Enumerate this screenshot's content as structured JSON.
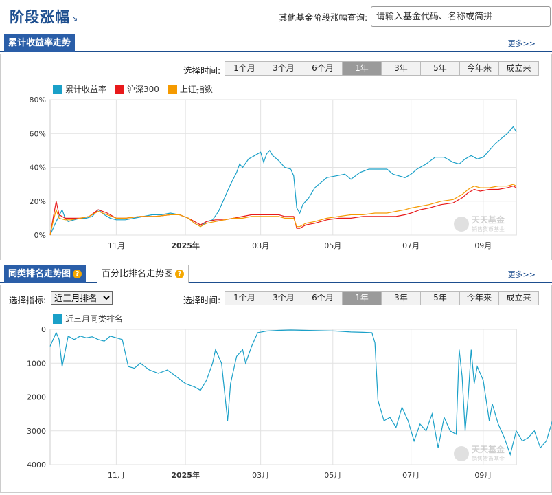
{
  "header": {
    "title": "阶段涨幅",
    "query_label": "其他基金阶段涨幅查询:",
    "search_placeholder": "请输入基金代码、名称或简拼"
  },
  "section1": {
    "tab": "累计收益率走势",
    "more": "更多>>",
    "time_label": "选择时间:",
    "time_buttons": [
      "1个月",
      "3个月",
      "6个月",
      "1年",
      "3年",
      "5年",
      "今年来",
      "成立来"
    ],
    "active_time": "1年"
  },
  "section2": {
    "tab": "同类排名走势图",
    "tab2": "百分比排名走势图",
    "more": "更多>>",
    "indicator_label": "选择指标:",
    "indicator_value": "近三月排名",
    "time_label": "选择时间:",
    "time_buttons": [
      "1个月",
      "3个月",
      "6个月",
      "1年",
      "3年",
      "5年",
      "今年来",
      "成立来"
    ],
    "active_time": "1年"
  },
  "watermark": {
    "brand": "天天基金",
    "slogan": "销售货币基金"
  },
  "colors": {
    "fund": "#1aa0c8",
    "hs300": "#e8191b",
    "sh": "#f59a00",
    "brand_blue": "#1d4e8f",
    "tab_blue": "#2a5ea8"
  },
  "chart_data": [
    {
      "type": "line",
      "x_ticks": [
        "11月",
        "2025年",
        "03月",
        "05月",
        "07月",
        "09月"
      ],
      "y_ticks": [
        "0%",
        "20%",
        "40%",
        "60%",
        "80%"
      ],
      "ylim": [
        0,
        80
      ],
      "grid": true,
      "legend_position": "top-left",
      "series": [
        {
          "name": "累计收益率",
          "color": "#1aa0c8",
          "points": [
            [
              0,
              0
            ],
            [
              2,
              8
            ],
            [
              4,
              15
            ],
            [
              5,
              10
            ],
            [
              6,
              8
            ],
            [
              8,
              9
            ],
            [
              10,
              10
            ],
            [
              12,
              10
            ],
            [
              14,
              11
            ],
            [
              16,
              15
            ],
            [
              18,
              12
            ],
            [
              20,
              10
            ],
            [
              22,
              9
            ],
            [
              25,
              9
            ],
            [
              28,
              10
            ],
            [
              31,
              11
            ],
            [
              34,
              12
            ],
            [
              37,
              12
            ],
            [
              40,
              13
            ],
            [
              43,
              12
            ],
            [
              46,
              10
            ],
            [
              48,
              7
            ],
            [
              50,
              5
            ],
            [
              52,
              8
            ],
            [
              54,
              9
            ],
            [
              56,
              14
            ],
            [
              58,
              22
            ],
            [
              60,
              30
            ],
            [
              62,
              37
            ],
            [
              63,
              42
            ],
            [
              64,
              40
            ],
            [
              66,
              45
            ],
            [
              68,
              47
            ],
            [
              70,
              49
            ],
            [
              71,
              43
            ],
            [
              72,
              48
            ],
            [
              73,
              50
            ],
            [
              74,
              47
            ],
            [
              76,
              44
            ],
            [
              78,
              40
            ],
            [
              80,
              39
            ],
            [
              81,
              35
            ],
            [
              82,
              16
            ],
            [
              83,
              13
            ],
            [
              84,
              18
            ],
            [
              86,
              22
            ],
            [
              88,
              28
            ],
            [
              90,
              31
            ],
            [
              92,
              34
            ],
            [
              95,
              35
            ],
            [
              98,
              36
            ],
            [
              100,
              33
            ],
            [
              103,
              37
            ],
            [
              106,
              39
            ],
            [
              109,
              39
            ],
            [
              112,
              39
            ],
            [
              114,
              36
            ],
            [
              116,
              35
            ],
            [
              118,
              34
            ],
            [
              120,
              36
            ],
            [
              122,
              39
            ],
            [
              125,
              42
            ],
            [
              128,
              46
            ],
            [
              131,
              46
            ],
            [
              134,
              43
            ],
            [
              136,
              42
            ],
            [
              138,
              45
            ],
            [
              140,
              47
            ],
            [
              142,
              45
            ],
            [
              144,
              46
            ],
            [
              146,
              50
            ],
            [
              148,
              54
            ],
            [
              150,
              57
            ],
            [
              152,
              60
            ],
            [
              153,
              62
            ],
            [
              154,
              64
            ],
            [
              155,
              61
            ]
          ]
        },
        {
          "name": "沪深300",
          "color": "#e8191b",
          "points": [
            [
              0,
              0
            ],
            [
              1,
              10
            ],
            [
              2,
              20
            ],
            [
              3,
              12
            ],
            [
              5,
              10
            ],
            [
              7,
              10
            ],
            [
              10,
              10
            ],
            [
              13,
              11
            ],
            [
              16,
              15
            ],
            [
              19,
              13
            ],
            [
              22,
              10
            ],
            [
              25,
              10
            ],
            [
              30,
              11
            ],
            [
              35,
              11
            ],
            [
              40,
              12
            ],
            [
              43,
              12
            ],
            [
              46,
              10
            ],
            [
              48,
              8
            ],
            [
              50,
              6
            ],
            [
              52,
              8
            ],
            [
              55,
              9
            ],
            [
              58,
              9
            ],
            [
              61,
              10
            ],
            [
              64,
              11
            ],
            [
              67,
              12
            ],
            [
              70,
              12
            ],
            [
              73,
              12
            ],
            [
              76,
              12
            ],
            [
              78,
              11
            ],
            [
              80,
              11
            ],
            [
              81,
              11
            ],
            [
              82,
              4
            ],
            [
              83,
              4
            ],
            [
              85,
              6
            ],
            [
              88,
              7
            ],
            [
              92,
              9
            ],
            [
              96,
              10
            ],
            [
              100,
              10
            ],
            [
              104,
              11
            ],
            [
              108,
              11
            ],
            [
              112,
              11
            ],
            [
              115,
              11
            ],
            [
              118,
              12
            ],
            [
              120,
              13
            ],
            [
              123,
              15
            ],
            [
              126,
              16
            ],
            [
              130,
              18
            ],
            [
              134,
              19
            ],
            [
              137,
              22
            ],
            [
              139,
              25
            ],
            [
              141,
              27
            ],
            [
              143,
              26
            ],
            [
              146,
              27
            ],
            [
              149,
              27
            ],
            [
              152,
              28
            ],
            [
              154,
              29
            ],
            [
              155,
              28
            ]
          ]
        },
        {
          "name": "上证指数",
          "color": "#f59a00",
          "points": [
            [
              0,
              0
            ],
            [
              1,
              8
            ],
            [
              2,
              15
            ],
            [
              3,
              10
            ],
            [
              5,
              9
            ],
            [
              7,
              9
            ],
            [
              10,
              10
            ],
            [
              13,
              11
            ],
            [
              16,
              14
            ],
            [
              19,
              12
            ],
            [
              22,
              10
            ],
            [
              25,
              10
            ],
            [
              30,
              11
            ],
            [
              35,
              11
            ],
            [
              40,
              12
            ],
            [
              43,
              12
            ],
            [
              46,
              10
            ],
            [
              48,
              7
            ],
            [
              50,
              5
            ],
            [
              52,
              7
            ],
            [
              55,
              8
            ],
            [
              58,
              9
            ],
            [
              61,
              10
            ],
            [
              64,
              10
            ],
            [
              67,
              11
            ],
            [
              70,
              11
            ],
            [
              73,
              11
            ],
            [
              76,
              11
            ],
            [
              78,
              10
            ],
            [
              80,
              10
            ],
            [
              81,
              10
            ],
            [
              82,
              5
            ],
            [
              83,
              5
            ],
            [
              85,
              7
            ],
            [
              88,
              8
            ],
            [
              92,
              10
            ],
            [
              96,
              11
            ],
            [
              100,
              12
            ],
            [
              104,
              12
            ],
            [
              108,
              13
            ],
            [
              112,
              13
            ],
            [
              115,
              14
            ],
            [
              118,
              15
            ],
            [
              120,
              16
            ],
            [
              123,
              17
            ],
            [
              126,
              18
            ],
            [
              130,
              20
            ],
            [
              134,
              21
            ],
            [
              137,
              24
            ],
            [
              139,
              27
            ],
            [
              141,
              29
            ],
            [
              143,
              28
            ],
            [
              146,
              28
            ],
            [
              149,
              29
            ],
            [
              152,
              29
            ],
            [
              154,
              30
            ],
            [
              155,
              29
            ]
          ]
        }
      ]
    },
    {
      "type": "line",
      "x_ticks": [
        "11月",
        "2025年",
        "03月",
        "05月",
        "07月",
        "09月"
      ],
      "y_ticks": [
        "0",
        "1000",
        "2000",
        "3000",
        "4000"
      ],
      "ylim": [
        0,
        4000
      ],
      "y_inverted": true,
      "grid": true,
      "legend_position": "top-left",
      "series": [
        {
          "name": "近三月同类排名",
          "color": "#1aa0c8",
          "points": [
            [
              0,
              500
            ],
            [
              2,
              100
            ],
            [
              3,
              300
            ],
            [
              4,
              1100
            ],
            [
              6,
              200
            ],
            [
              8,
              300
            ],
            [
              10,
              200
            ],
            [
              12,
              250
            ],
            [
              14,
              220
            ],
            [
              16,
              300
            ],
            [
              18,
              350
            ],
            [
              20,
              200
            ],
            [
              22,
              250
            ],
            [
              24,
              300
            ],
            [
              26,
              1100
            ],
            [
              28,
              1150
            ],
            [
              30,
              1000
            ],
            [
              33,
              1200
            ],
            [
              36,
              1300
            ],
            [
              39,
              1200
            ],
            [
              42,
              1400
            ],
            [
              45,
              1600
            ],
            [
              48,
              1700
            ],
            [
              50,
              1800
            ],
            [
              52,
              1500
            ],
            [
              54,
              1000
            ],
            [
              55,
              600
            ],
            [
              57,
              1000
            ],
            [
              59,
              2700
            ],
            [
              60,
              1600
            ],
            [
              62,
              800
            ],
            [
              64,
              600
            ],
            [
              65,
              1000
            ],
            [
              67,
              500
            ],
            [
              69,
              100
            ],
            [
              72,
              50
            ],
            [
              76,
              30
            ],
            [
              80,
              20
            ],
            [
              85,
              30
            ],
            [
              90,
              40
            ],
            [
              95,
              50
            ],
            [
              100,
              80
            ],
            [
              104,
              90
            ],
            [
              107,
              100
            ],
            [
              108,
              400
            ],
            [
              109,
              2100
            ],
            [
              111,
              2700
            ],
            [
              113,
              2600
            ],
            [
              115,
              2900
            ],
            [
              117,
              2300
            ],
            [
              119,
              2700
            ],
            [
              121,
              3300
            ],
            [
              123,
              2800
            ],
            [
              125,
              3000
            ],
            [
              127,
              2500
            ],
            [
              129,
              3500
            ],
            [
              131,
              2600
            ],
            [
              133,
              3000
            ],
            [
              135,
              3100
            ],
            [
              136,
              600
            ],
            [
              137,
              1400
            ],
            [
              138,
              3000
            ],
            [
              139,
              2000
            ],
            [
              140,
              600
            ],
            [
              141,
              1600
            ],
            [
              142,
              1100
            ],
            [
              144,
              1500
            ],
            [
              146,
              2700
            ],
            [
              147,
              2200
            ],
            [
              149,
              2800
            ],
            [
              151,
              3200
            ],
            [
              153,
              3700
            ],
            [
              155,
              3000
            ],
            [
              157,
              3300
            ],
            [
              159,
              3200
            ],
            [
              161,
              3000
            ],
            [
              163,
              3500
            ],
            [
              165,
              3300
            ],
            [
              167,
              2700
            ],
            [
              169,
              1900
            ],
            [
              171,
              2500
            ],
            [
              173,
              2300
            ]
          ]
        }
      ]
    }
  ]
}
